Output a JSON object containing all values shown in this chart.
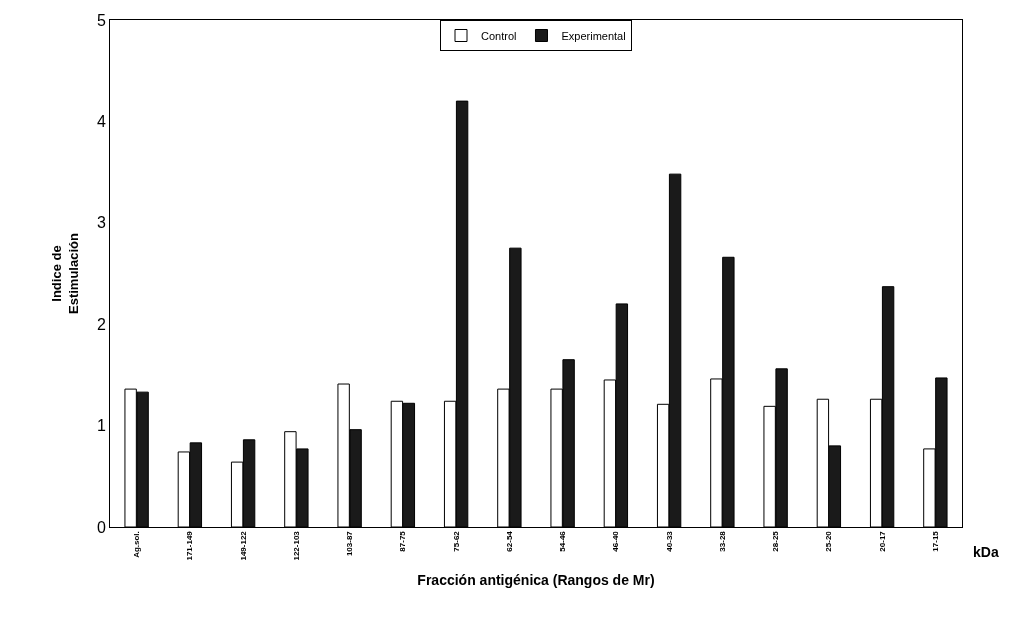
{
  "chart_data": {
    "type": "bar",
    "xlabel": "Fracción antigénica (Rangos de Mr)",
    "ylabel": "Indice de\nEstimulación",
    "categories": [
      "Ag.sol.",
      "171-149",
      "149-122",
      "122-103",
      "103-87",
      "87-75",
      "75-62",
      "62-54",
      "54-46",
      "46-40",
      "40-33",
      "33-28",
      "28-25",
      "25-20",
      "20-17",
      "17-15"
    ],
    "series": [
      {
        "name": "Control",
        "color": "#ffffff",
        "values": [
          1.36,
          0.74,
          0.64,
          0.94,
          1.41,
          1.24,
          1.24,
          1.36,
          1.36,
          1.45,
          1.21,
          1.46,
          1.19,
          1.26,
          1.26,
          0.77
        ]
      },
      {
        "name": "Experimental",
        "color": "#1a1a1a",
        "values": [
          1.33,
          0.83,
          0.86,
          0.77,
          0.96,
          1.22,
          4.2,
          2.75,
          1.65,
          2.2,
          3.48,
          2.66,
          1.56,
          0.8,
          2.37,
          1.47
        ]
      }
    ],
    "ylim": [
      0,
      5
    ],
    "yticks": [
      0,
      1,
      2,
      3,
      4,
      5
    ],
    "legend": "top",
    "annotations": [
      "kDa"
    ]
  }
}
